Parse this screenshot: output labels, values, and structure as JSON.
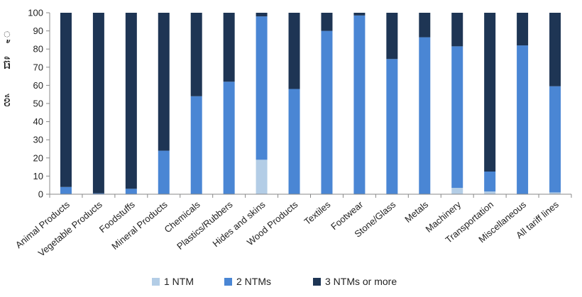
{
  "chart_data": {
    "type": "bar",
    "stacked": true,
    "title": "",
    "xlabel": "",
    "ylabel": "",
    "ylim": [
      0,
      100
    ],
    "yticks": [
      0,
      10,
      20,
      30,
      40,
      50,
      60,
      70,
      80,
      90,
      100
    ],
    "grid": false,
    "legend_position": "bottom",
    "categories": [
      "Animal Products",
      "Vegetable Products",
      "Foodstuffs",
      "Mineral Products",
      "Chemicals",
      "Plastics/Rubbers",
      "Hides and skins",
      "Wood Products",
      "Textiles",
      "Footwear",
      "Stone/Glass",
      "Metals",
      "Machinery",
      "Transportation",
      "Miscellaneous",
      "All tariff lines"
    ],
    "series": [
      {
        "name": "1 NTM",
        "color": "#b3cde6",
        "values": [
          0,
          0,
          0,
          0,
          0,
          0,
          19,
          0,
          0,
          0,
          0,
          0,
          3.5,
          1.5,
          0,
          1
        ]
      },
      {
        "name": "2 NTMs",
        "color": "#4a86d4",
        "values": [
          4,
          0.5,
          3,
          24,
          54,
          62,
          79,
          58,
          90,
          98.5,
          74.5,
          86.5,
          78,
          11,
          82,
          58.5
        ]
      },
      {
        "name": "3 NTMs or more",
        "color": "#1e3554",
        "values": [
          96,
          99.5,
          97,
          76,
          46,
          38,
          2,
          42,
          10,
          1.5,
          25.5,
          13.5,
          18.5,
          87.5,
          18,
          40.5
        ]
      }
    ]
  },
  "side_glyphs": [
    "ូ",
    "ធិ",
    "ខ៏"
  ]
}
